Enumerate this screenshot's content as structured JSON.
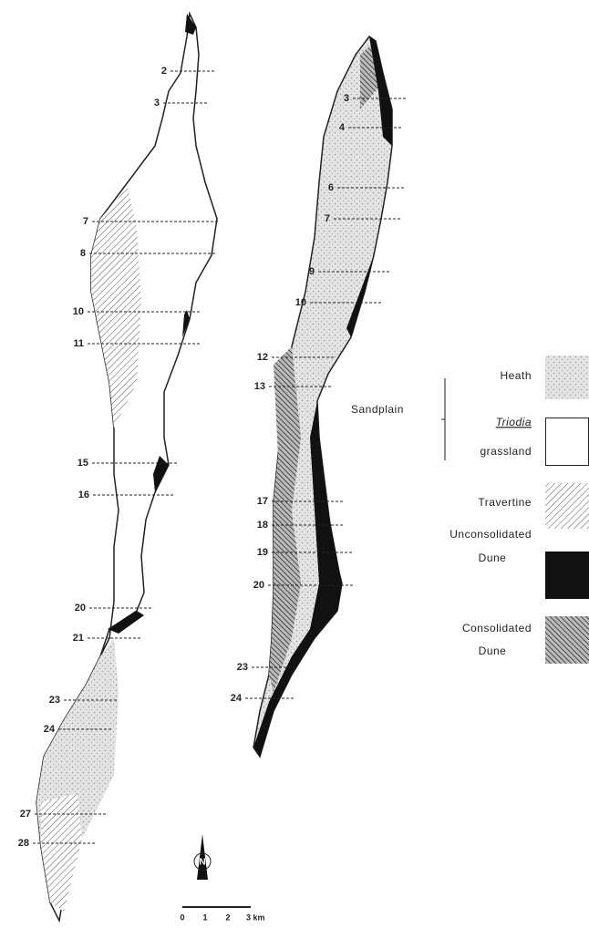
{
  "left_island": {
    "transects": [
      "2",
      "3",
      "7",
      "8",
      "10",
      "11",
      "15",
      "16",
      "20",
      "21",
      "23",
      "24",
      "27",
      "28"
    ]
  },
  "right_island": {
    "transects": [
      "3",
      "4",
      "6",
      "7",
      "9",
      "10",
      "12",
      "13",
      "17",
      "18",
      "19",
      "20",
      "23",
      "24"
    ]
  },
  "legend": {
    "heath": "Heath",
    "sandplain": "Sandplain",
    "triodia": "Triodia",
    "grassland": "grassland",
    "travertine": "Travertine",
    "unconsolidated": [
      "Unconsolidated",
      "Dune"
    ],
    "consolidated": [
      "Consolidated",
      "Dune"
    ]
  },
  "north": "N",
  "scale": [
    "0",
    "1",
    "2",
    "3 km"
  ]
}
